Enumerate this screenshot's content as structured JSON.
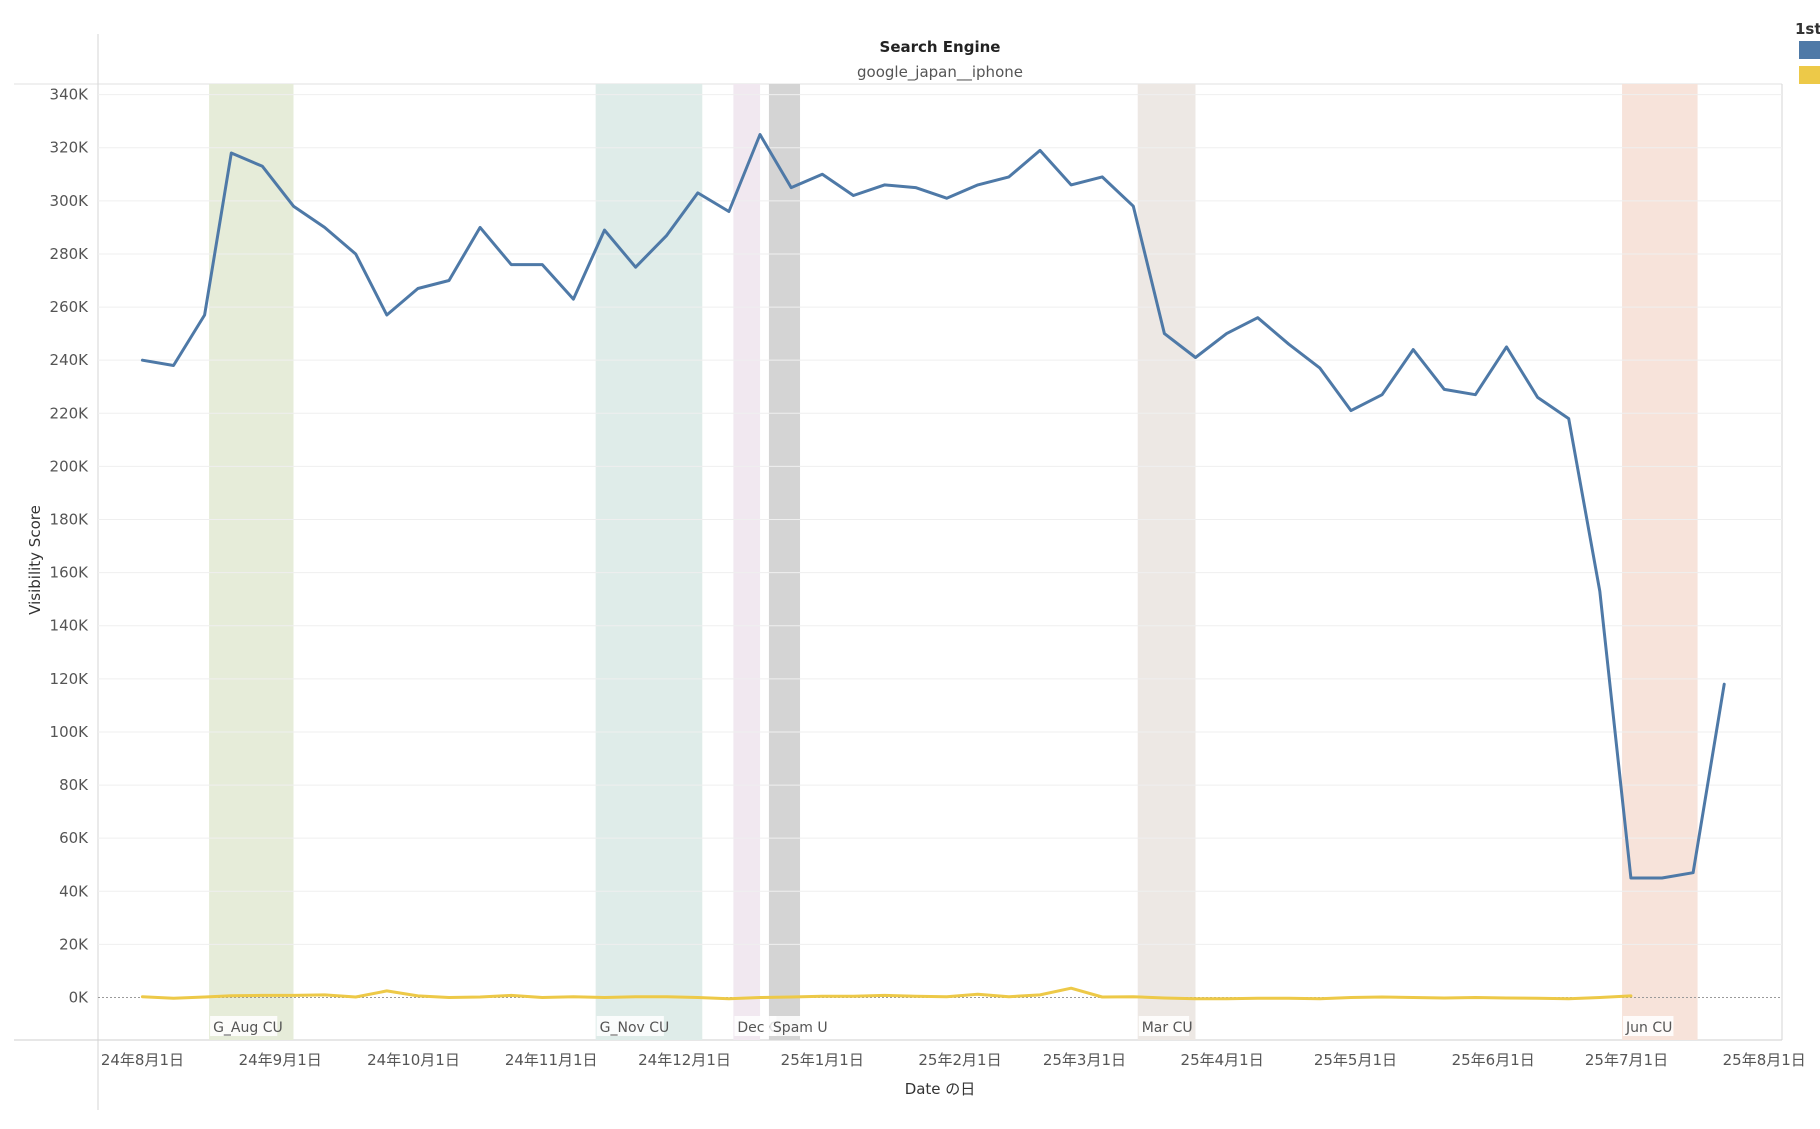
{
  "chart_data": {
    "type": "line",
    "header": {
      "title": "Search Engine",
      "subtitle": "google_japan__iphone"
    },
    "legend": {
      "title": "1st",
      "placement": "top-right",
      "items": [
        {
          "color": "#4e79a7"
        },
        {
          "color": "#edc948"
        }
      ]
    },
    "xlabel": "Date の日",
    "ylabel": "Visibility Score",
    "x_range": [
      "2024-07-22",
      "2025-08-05"
    ],
    "ylim": [
      -16000,
      344000
    ],
    "y_ticks": [
      0,
      20000,
      40000,
      60000,
      80000,
      100000,
      120000,
      140000,
      160000,
      180000,
      200000,
      220000,
      240000,
      260000,
      280000,
      300000,
      320000,
      340000
    ],
    "y_tick_labels": [
      "0K",
      "20K",
      "40K",
      "60K",
      "80K",
      "100K",
      "120K",
      "140K",
      "160K",
      "180K",
      "200K",
      "220K",
      "240K",
      "260K",
      "280K",
      "300K",
      "320K",
      "340K"
    ],
    "x_ticks": [
      "2024-08-01",
      "2024-09-01",
      "2024-10-01",
      "2024-11-01",
      "2024-12-01",
      "2025-01-01",
      "2025-02-01",
      "2025-03-01",
      "2025-04-01",
      "2025-05-01",
      "2025-06-01",
      "2025-07-01",
      "2025-08-01"
    ],
    "x_tick_labels": [
      "24年8月1日",
      "24年9月1日",
      "24年10月1日",
      "24年11月1日",
      "24年12月1日",
      "25年1月1日",
      "25年2月1日",
      "25年3月1日",
      "25年4月1日",
      "25年5月1日",
      "25年6月1日",
      "25年7月1日",
      "25年8月1日"
    ],
    "grid": true,
    "bands": [
      {
        "label": "G_Aug CU",
        "start": "2024-08-16",
        "end": "2024-09-04",
        "color": "#e6ecd9"
      },
      {
        "label": "G_Nov CU",
        "start": "2024-11-11",
        "end": "2024-12-05",
        "color": "#dfece9"
      },
      {
        "label": "Dec C",
        "start": "2024-12-12",
        "end": "2024-12-18",
        "color": "#f1e8f0"
      },
      {
        "label": "Spam U",
        "start": "2024-12-20",
        "end": "2024-12-27",
        "color": "#d4d4d4"
      },
      {
        "label": "Mar CU",
        "start": "2025-03-13",
        "end": "2025-03-26",
        "color": "#ede8e4"
      },
      {
        "label": "Jun CU",
        "start": "2025-06-30",
        "end": "2025-07-17",
        "color": "#f7e3da"
      }
    ],
    "series": [
      {
        "color": "#4e79a7",
        "x": [
          "2024-08-01",
          "2024-08-08",
          "2024-08-15",
          "2024-08-21",
          "2024-08-28",
          "2024-09-04",
          "2024-09-11",
          "2024-09-18",
          "2024-09-25",
          "2024-10-02",
          "2024-10-09",
          "2024-10-16",
          "2024-10-23",
          "2024-10-30",
          "2024-11-06",
          "2024-11-13",
          "2024-11-20",
          "2024-11-27",
          "2024-12-04",
          "2024-12-11",
          "2024-12-18",
          "2024-12-25",
          "2025-01-01",
          "2025-01-08",
          "2025-01-15",
          "2025-01-22",
          "2025-01-29",
          "2025-02-05",
          "2025-02-12",
          "2025-02-19",
          "2025-02-26",
          "2025-03-05",
          "2025-03-12",
          "2025-03-19",
          "2025-03-26",
          "2025-04-02",
          "2025-04-09",
          "2025-04-16",
          "2025-04-23",
          "2025-04-30",
          "2025-05-07",
          "2025-05-14",
          "2025-05-21",
          "2025-05-28",
          "2025-06-04",
          "2025-06-11",
          "2025-06-18",
          "2025-06-25",
          "2025-07-02",
          "2025-07-09",
          "2025-07-16",
          "2025-07-23"
        ],
        "values": [
          240000,
          238000,
          257000,
          318000,
          313000,
          298000,
          290000,
          280000,
          257000,
          267000,
          270000,
          290000,
          276000,
          276000,
          263000,
          289000,
          275000,
          287000,
          303000,
          296000,
          325000,
          305000,
          310000,
          302000,
          306000,
          305000,
          301000,
          306000,
          309000,
          319000,
          306000,
          309000,
          298000,
          250000,
          241000,
          250000,
          256000,
          246000,
          237000,
          221000,
          227000,
          244000,
          229000,
          227000,
          245000,
          226000,
          218000,
          153000,
          45000,
          45000,
          47000,
          118000
        ]
      },
      {
        "color": "#edc948",
        "x": [
          "2024-08-01",
          "2024-08-08",
          "2024-08-15",
          "2024-08-21",
          "2024-08-28",
          "2024-09-04",
          "2024-09-11",
          "2024-09-18",
          "2024-09-25",
          "2024-10-02",
          "2024-10-09",
          "2024-10-16",
          "2024-10-23",
          "2024-10-30",
          "2024-11-06",
          "2024-11-13",
          "2024-11-20",
          "2024-11-27",
          "2024-12-04",
          "2024-12-11",
          "2024-12-18",
          "2024-12-25",
          "2025-01-01",
          "2025-01-08",
          "2025-01-15",
          "2025-01-22",
          "2025-01-29",
          "2025-02-05",
          "2025-02-12",
          "2025-02-19",
          "2025-02-26",
          "2025-03-05",
          "2025-03-12",
          "2025-03-19",
          "2025-03-26",
          "2025-04-02",
          "2025-04-09",
          "2025-04-16",
          "2025-04-23",
          "2025-04-30",
          "2025-05-07",
          "2025-05-14",
          "2025-05-21",
          "2025-05-28",
          "2025-06-04",
          "2025-06-11",
          "2025-06-18",
          "2025-06-25",
          "2025-07-02"
        ],
        "values": [
          300,
          -300,
          200,
          700,
          800,
          800,
          1000,
          200,
          2500,
          600,
          0,
          200,
          800,
          0,
          300,
          0,
          300,
          300,
          0,
          -500,
          0,
          200,
          500,
          500,
          800,
          500,
          300,
          1200,
          300,
          1000,
          3500,
          200,
          300,
          -200,
          -500,
          -500,
          -300,
          -300,
          -500,
          0,
          200,
          0,
          -200,
          0,
          -200,
          -300,
          -500,
          0,
          600
        ]
      }
    ]
  }
}
